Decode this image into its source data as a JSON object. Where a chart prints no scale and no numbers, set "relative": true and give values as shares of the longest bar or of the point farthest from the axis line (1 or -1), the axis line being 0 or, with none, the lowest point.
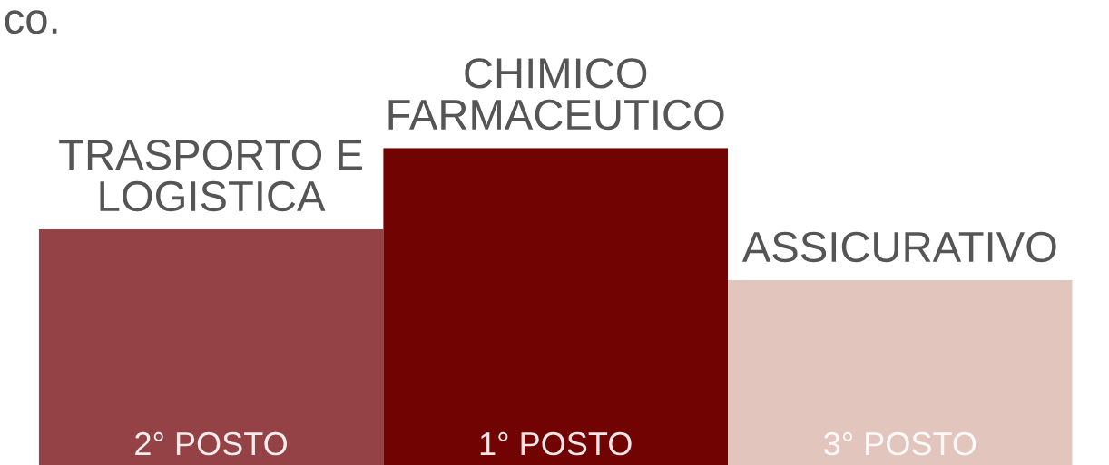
{
  "chart_data": {
    "type": "bar",
    "relative": true,
    "categories": [
      "TRASPORTO E\nLOGISTICA",
      "CHIMICO\nFARMACEUTICO",
      "ASSICURATIVO"
    ],
    "values": [
      0.743,
      1,
      0.583
    ],
    "colors": [
      "#944245",
      "#720303",
      "#e2c5bc"
    ],
    "annotations": [
      "co.",
      "2° POSTO",
      "1° POSTO",
      "3° POSTO"
    ]
  }
}
